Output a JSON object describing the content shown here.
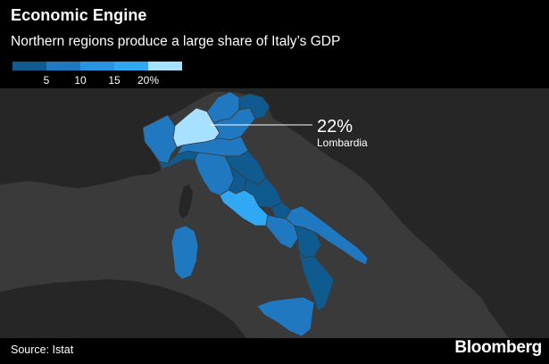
{
  "header": {
    "title": "Economic Engine",
    "subtitle": "Northern regions produce a large share of Italy’s GDP"
  },
  "legend": {
    "bins": [
      {
        "max": 5,
        "color": "#0f5a8f"
      },
      {
        "max": 10,
        "color": "#1f78c0"
      },
      {
        "max": 15,
        "color": "#2a93e2"
      },
      {
        "max": 20,
        "color": "#31a8f4"
      },
      {
        "max": null,
        "color": "#a6e1ff"
      }
    ],
    "tick_labels": [
      "5",
      "10",
      "15",
      "20%"
    ]
  },
  "callout": {
    "value": "22%",
    "region": "Lombardia"
  },
  "footer": {
    "source": "Source: Istat",
    "brand": "Bloomberg"
  },
  "colors": {
    "background": "#000000",
    "map_bg": "#3a3a3a",
    "land_other": "#262626",
    "border": "#4a4a4a"
  }
}
